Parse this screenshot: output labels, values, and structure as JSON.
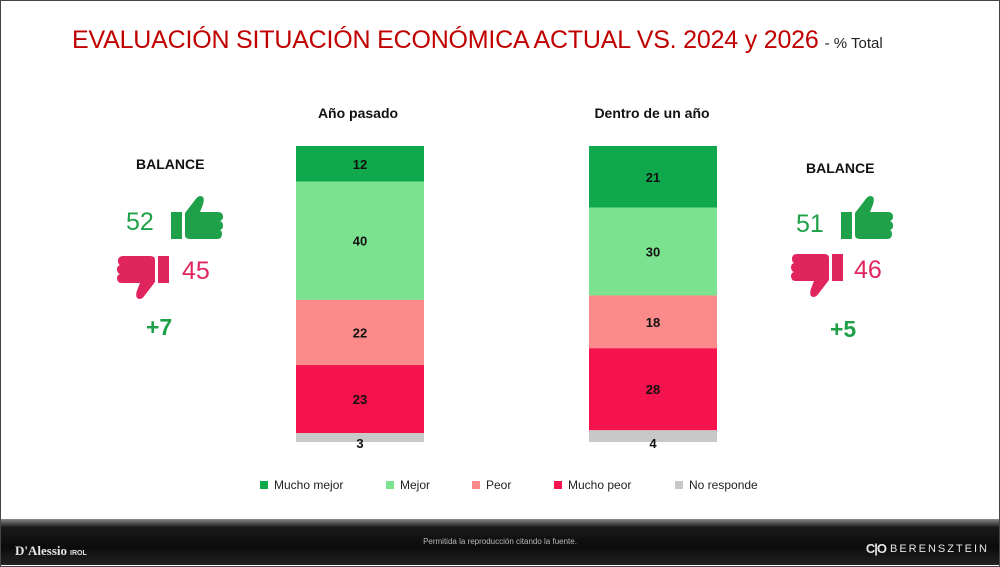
{
  "title": "EVALUACIÓN SITUACIÓN ECONÓMICA ACTUAL VS. 2024 y 2026",
  "subtitle": "- % Total",
  "chart_data": {
    "type": "bar",
    "stacked": true,
    "categories": [
      "Año pasado",
      "Dentro de un año"
    ],
    "series": [
      {
        "name": "Mucho mejor",
        "values": [
          12,
          21
        ],
        "color": "#10a84d"
      },
      {
        "name": "Mejor",
        "values": [
          40,
          30
        ],
        "color": "#7be28f"
      },
      {
        "name": "Peor",
        "values": [
          22,
          18
        ],
        "color": "#fb8a8a"
      },
      {
        "name": "Mucho peor",
        "values": [
          23,
          28
        ],
        "color": "#f5134e"
      },
      {
        "name": "No responde",
        "values": [
          3,
          4
        ],
        "color": "#c8c8c8"
      }
    ],
    "ylim": [
      0,
      100
    ]
  },
  "balance_left": {
    "label": "BALANCE",
    "positive": "52",
    "negative": "45",
    "net": "+7"
  },
  "balance_right": {
    "label": "BALANCE",
    "positive": "51",
    "negative": "46",
    "net": "+5"
  },
  "colors": {
    "positive": "#1fa14a",
    "negative": "#e0245e",
    "title": "#c00000"
  },
  "icons": {
    "up": "thumbs-up-icon",
    "down": "thumbs-down-icon"
  },
  "footer": {
    "left_logo": "D'Alessio",
    "left_logo_sub": "IROL",
    "note": "Permitida la reproducción citando la fuente.",
    "right_logo": "BERENSZTEIN"
  }
}
